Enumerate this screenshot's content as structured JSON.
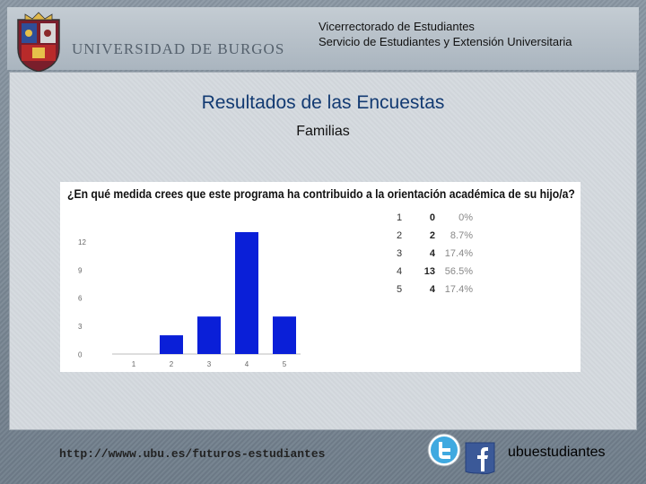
{
  "header": {
    "university_name": "UNIVERSIDAD DE BURGOS",
    "line1": "Vicerrectorado de Estudiantes",
    "line2": "Servicio de Estudiantes y Extensión Universitaria"
  },
  "slide": {
    "title": "Resultados de las Encuestas",
    "subtitle": "Familias"
  },
  "chart_data": {
    "type": "bar",
    "title": "¿En qué medida crees que este programa ha contribuido a la orientación académica de su hijo/a?",
    "categories": [
      "1",
      "2",
      "3",
      "4",
      "5"
    ],
    "values": [
      0,
      2,
      4,
      13,
      4
    ],
    "yticks": [
      "0",
      "3",
      "6",
      "9",
      "12"
    ],
    "ylim": [
      0,
      13
    ],
    "bar_color": "#0a1fd8",
    "summary": [
      {
        "option": "1",
        "count": "0",
        "percent": "0%"
      },
      {
        "option": "2",
        "count": "2",
        "percent": "8.7%"
      },
      {
        "option": "3",
        "count": "4",
        "percent": "17.4%"
      },
      {
        "option": "4",
        "count": "13",
        "percent": "56.5%"
      },
      {
        "option": "5",
        "count": "4",
        "percent": "17.4%"
      }
    ]
  },
  "footer": {
    "url": "http://wwww.ubu.es/futuros-estudiantes",
    "handle": "ubuestudiantes"
  },
  "icons": {
    "crest": "university-crest-icon",
    "twitter": "twitter-icon",
    "facebook": "facebook-icon"
  }
}
